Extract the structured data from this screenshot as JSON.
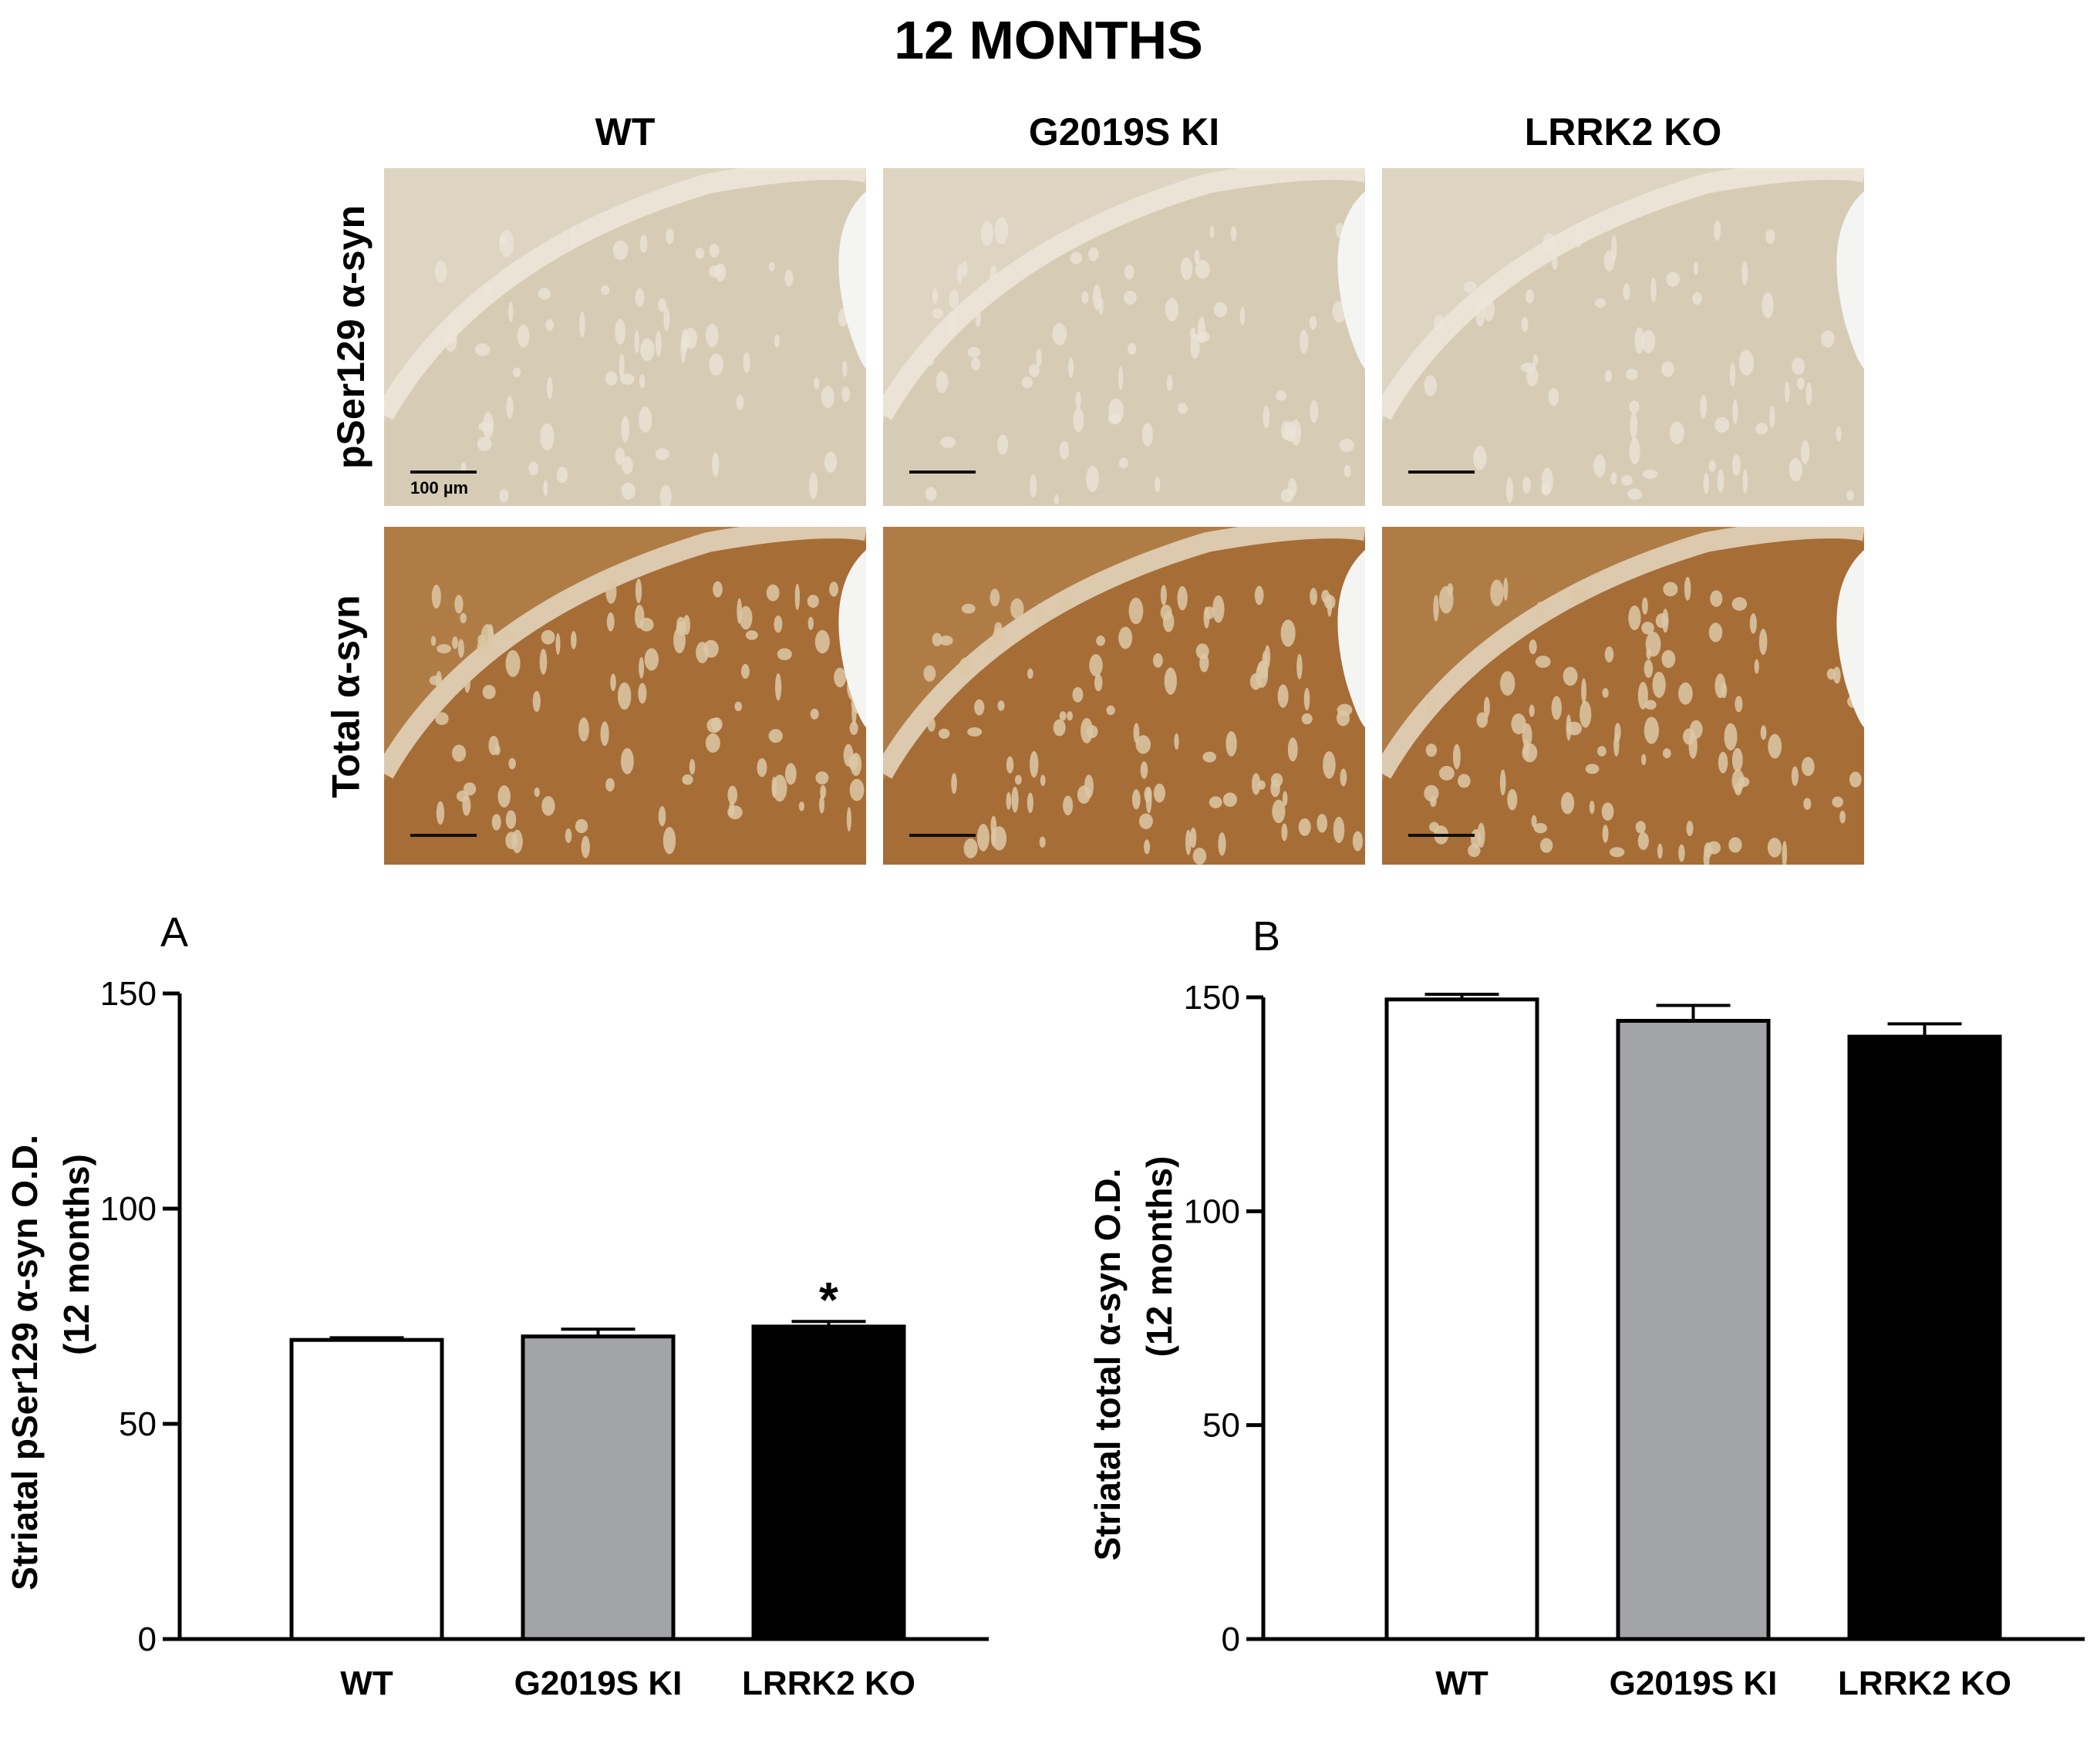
{
  "figure_title": "12 MONTHS",
  "micrographs": {
    "columns": [
      "WT",
      "G2019S KI",
      "LRRK2 KO"
    ],
    "rows": [
      "pSer129 α-syn",
      "Total α-syn"
    ],
    "scale_bar_label": "100 µm",
    "colors": {
      "pser_background": "#ddd4c1",
      "total_background": "#b07c46",
      "total_tissue": "#a66d37",
      "white_matter": "#dcc9ae"
    }
  },
  "panels": {
    "a_label": "A",
    "b_label": "B"
  },
  "chart_data": [
    {
      "type": "bar",
      "panel": "A",
      "categories": [
        "WT",
        "G2019S KI",
        "LRRK2 KO"
      ],
      "values": [
        69.5,
        70.3,
        72.6
      ],
      "errors": [
        0.5,
        1.7,
        1.2
      ],
      "significance": [
        "",
        "",
        "*"
      ],
      "bar_colors": [
        "#ffffff",
        "#a3a4a8",
        "#000000"
      ],
      "ylabel_line1": "Striatal pSer129 α-syn O.D.",
      "ylabel_line2": "(12 months)",
      "xlabel": "",
      "ylim": [
        0,
        150
      ],
      "yticks": [
        0,
        50,
        100,
        150
      ],
      "grid": false
    },
    {
      "type": "bar",
      "panel": "B",
      "categories": [
        "WT",
        "G2019S KI",
        "LRRK2 KO"
      ],
      "values": [
        149.5,
        144.5,
        140.8
      ],
      "errors": [
        1.2,
        3.6,
        3.0
      ],
      "significance": [
        "",
        "",
        ""
      ],
      "bar_colors": [
        "#ffffff",
        "#a3a4a8",
        "#000000"
      ],
      "ylabel_line1": "Striatal total α-syn O.D.",
      "ylabel_line2": "(12 months)",
      "xlabel": "",
      "ylim": [
        0,
        150
      ],
      "yticks": [
        0,
        50,
        100,
        150
      ],
      "grid": false
    }
  ]
}
